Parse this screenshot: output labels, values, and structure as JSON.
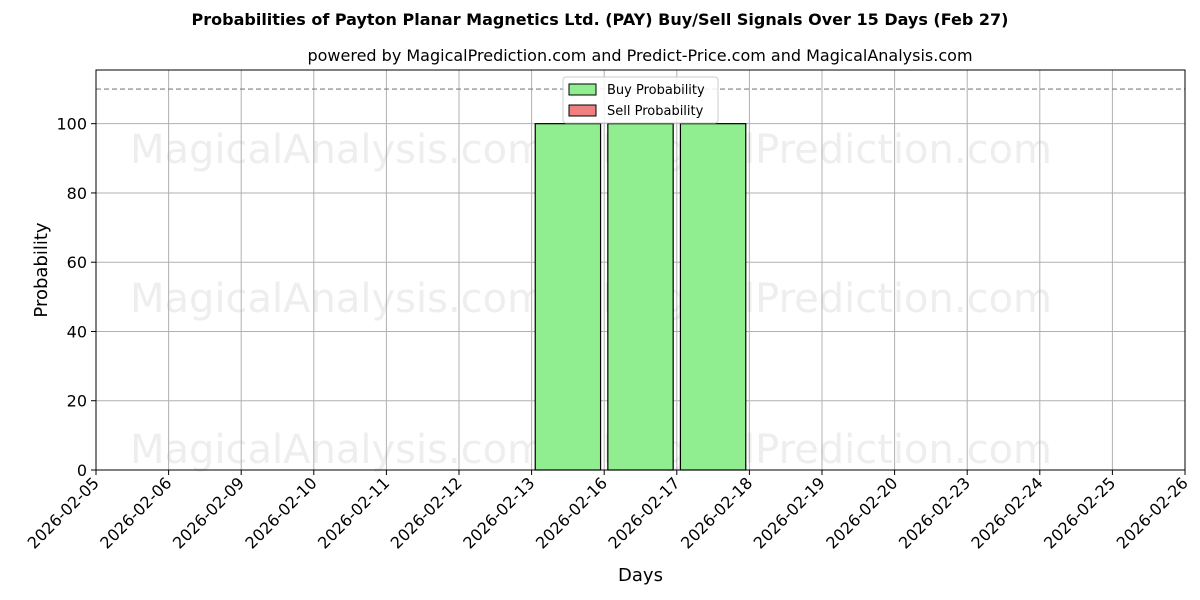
{
  "chart_data": {
    "type": "bar",
    "title": "Probabilities of Payton Planar Magnetics Ltd. (PAY) Buy/Sell Signals Over 15 Days (Feb 27)",
    "subtitle": "powered by MagicalPrediction.com and Predict-Price.com and MagicalAnalysis.com",
    "xlabel": "Days",
    "ylabel": "Probability",
    "categories": [
      "2026-02-05",
      "2026-02-06",
      "2026-02-09",
      "2026-02-10",
      "2026-02-11",
      "2026-02-12",
      "2026-02-13",
      "2026-02-16",
      "2026-02-17",
      "2026-02-18",
      "2026-02-19",
      "2026-02-20",
      "2026-02-23",
      "2026-02-24",
      "2026-02-25",
      "2026-02-26"
    ],
    "ylim": [
      0,
      115.5
    ],
    "yticks": [
      0,
      20,
      40,
      60,
      80,
      100
    ],
    "reference_line": 110,
    "grid": true,
    "legend_position": "top-center",
    "series": [
      {
        "name": "Buy Probability",
        "color": "#90ee90",
        "points": [
          {
            "x": "2026-02-16",
            "value": 100
          },
          {
            "x": "2026-02-17",
            "value": 100
          },
          {
            "x": "2026-02-18",
            "value": 100
          }
        ]
      },
      {
        "name": "Sell Probability",
        "color": "#f08080",
        "points": []
      }
    ],
    "watermarks": [
      "MagicalAnalysis.com",
      "MagicalPrediction.com",
      "MagicalAnalysis.com",
      "MagicalPrediction.com",
      "MagicalAnalysis.com",
      "MagicalPrediction.com"
    ]
  }
}
